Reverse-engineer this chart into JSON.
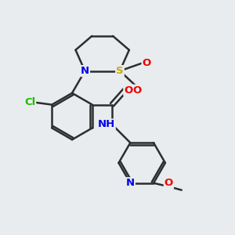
{
  "background_color": "#e8ecee",
  "bond_color": "#2d2d2d",
  "bond_width": 1.8,
  "atoms": {
    "S": {
      "color": "#ccaa00"
    },
    "N": {
      "color": "#0000ee"
    },
    "O": {
      "color": "#ee0000"
    },
    "Cl": {
      "color": "#22bb00"
    },
    "C": {
      "color": "#2d2d2d"
    }
  },
  "figsize": [
    3.0,
    3.0
  ],
  "dpi": 100,
  "xlim": [
    0,
    10
  ],
  "ylim": [
    0,
    10
  ]
}
